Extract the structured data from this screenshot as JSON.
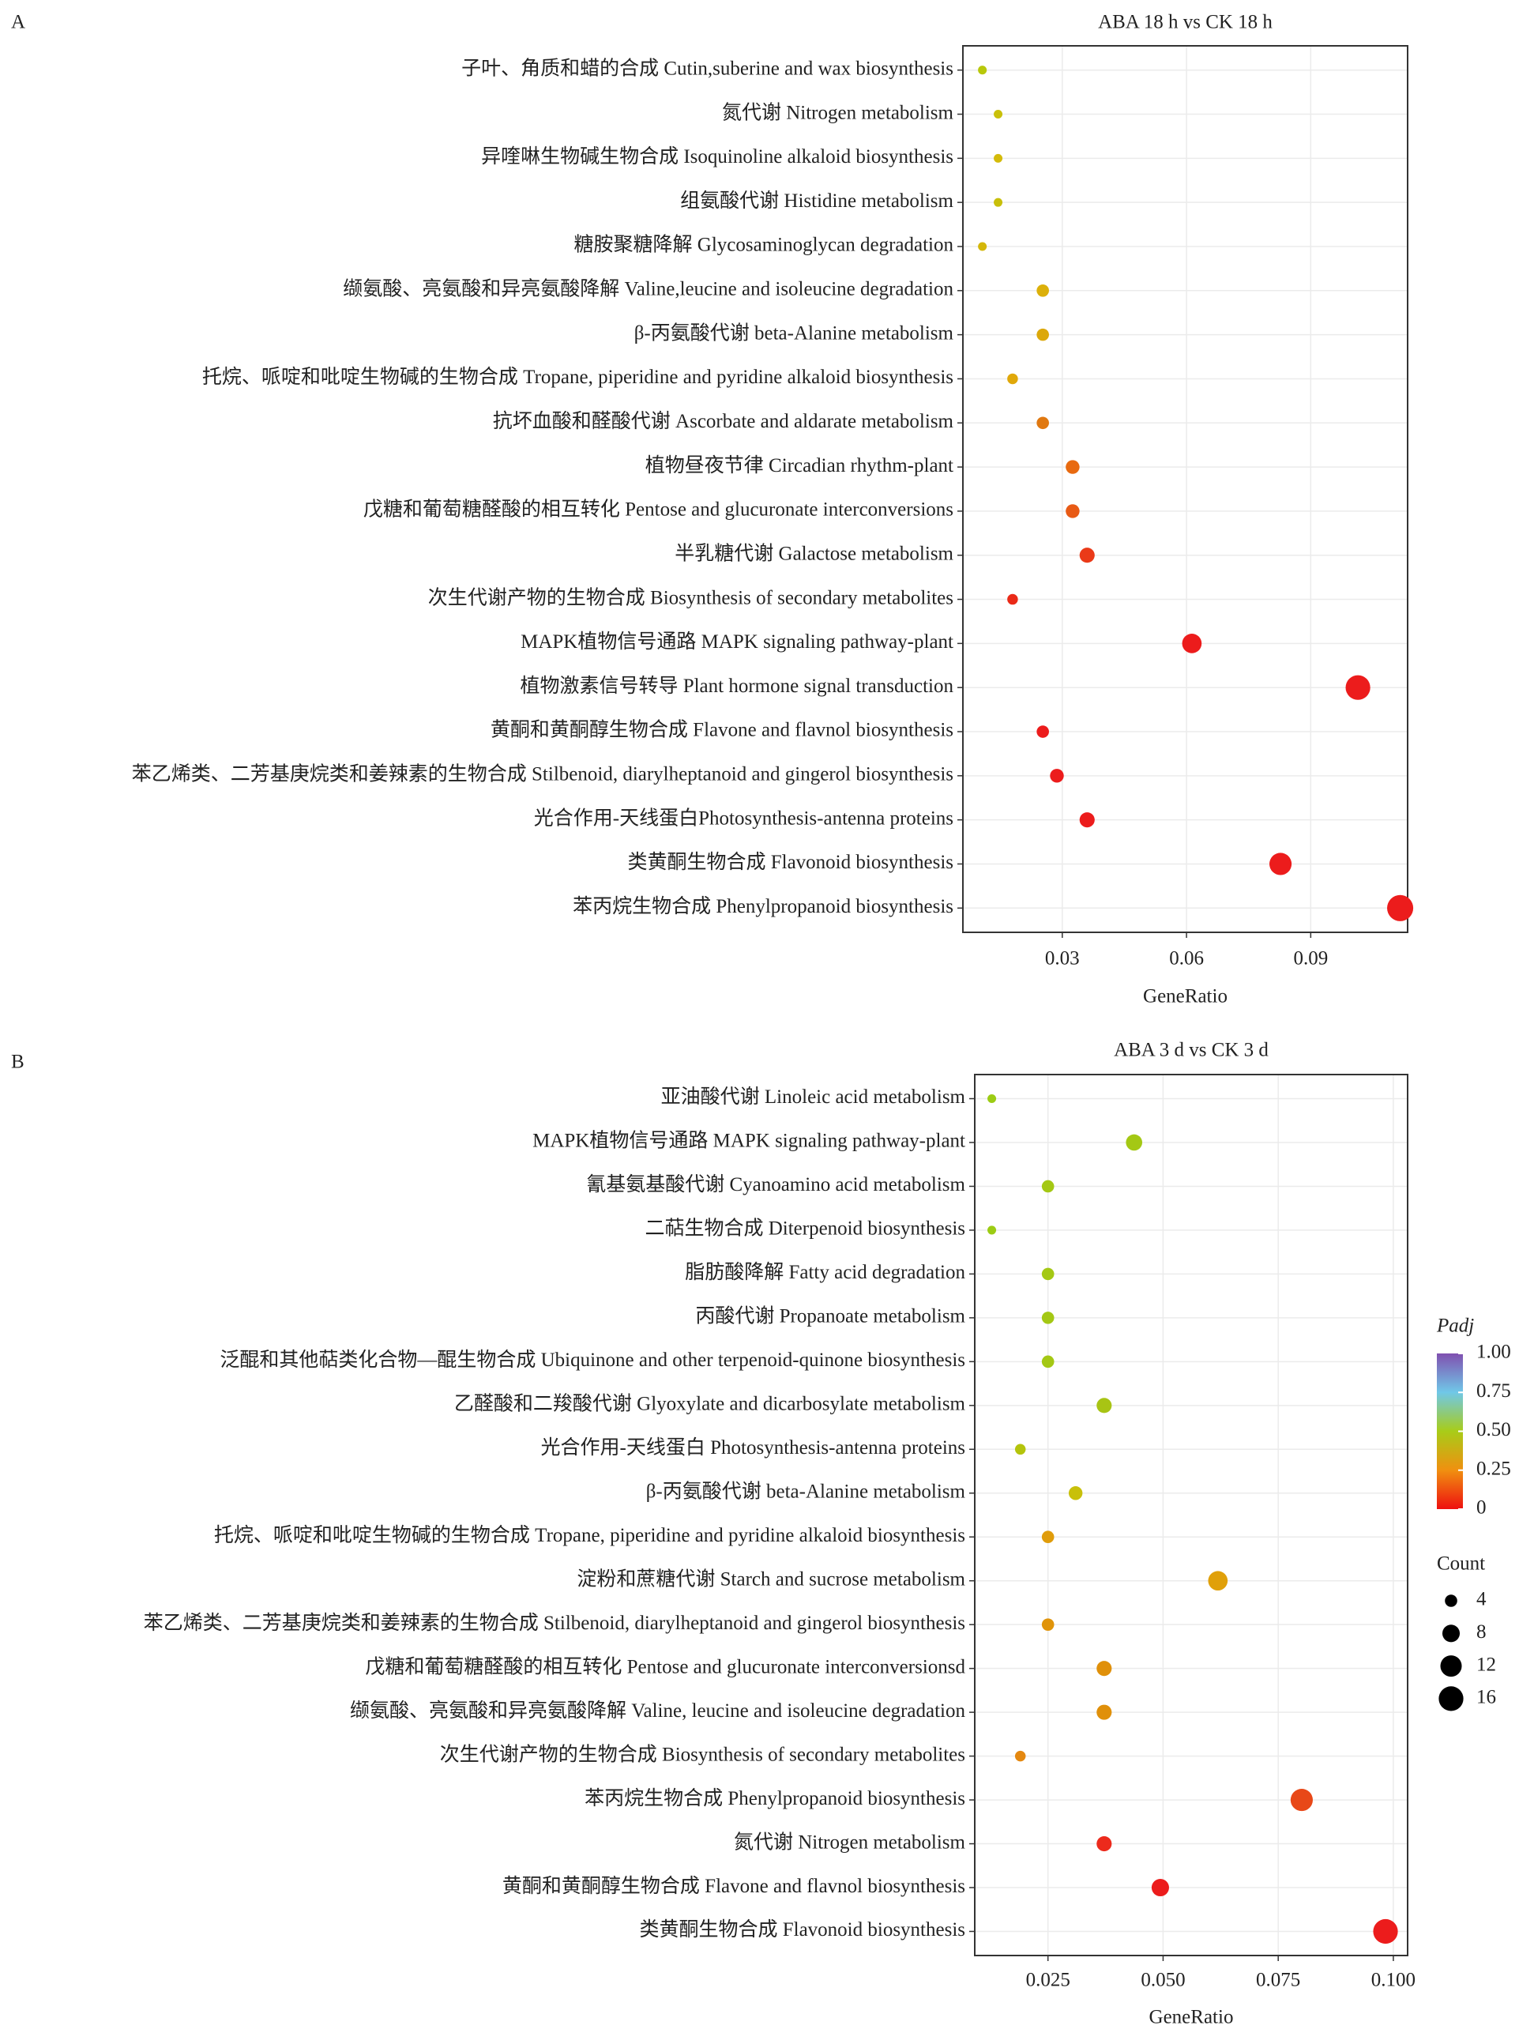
{
  "chart_data": [
    {
      "type": "dot",
      "panel": "A",
      "title": "ABA 18 h  vs  CK 18 h",
      "xlabel": "GeneRatio",
      "categories": [
        "子叶、角质和蜡的合成 Cutin,suberine and wax biosynthesis",
        "氮代谢 Nitrogen metabolism",
        "异喹啉生物碱生物合成 Isoquinoline alkaloid biosynthesis",
        "组氨酸代谢 Histidine metabolism",
        "糖胺聚糖降解 Glycosaminoglycan degradation",
        "缬氨酸、亮氨酸和异亮氨酸降解 Valine,leucine and isoleucine degradation",
        "β-丙氨酸代谢 beta-Alanine metabolism",
        "托烷、哌啶和吡啶生物碱的生物合成  Tropane, piperidine and pyridine alkaloid biosynthesis",
        "抗坏血酸和醛酸代谢 Ascorbate and aldarate metabolism",
        "植物昼夜节律 Circadian rhythm-plant",
        "戊糖和葡萄糖醛酸的相互转化 Pentose and glucuronate interconversions",
        "半乳糖代谢 Galactose metabolism",
        "次生代谢产物的生物合成 Biosynthesis of secondary metabolites",
        "MAPK植物信号通路 MAPK signaling pathway-plant",
        "植物激素信号转导 Plant hormone signal transduction",
        "黄酮和黄酮醇生物合成 Flavone and flavnol biosynthesis",
        "苯乙烯类、二芳基庚烷类和姜辣素的生物合成 Stilbenoid, diarylheptanoid and gingerol biosynthesis",
        "光合作用-天线蛋白Photosynthesis-antenna proteins",
        "类黄酮生物合成 Flavonoid biosynthesis",
        "苯丙烷生物合成 Phenylpropanoid biosynthesis"
      ],
      "values": [
        0.0107,
        0.0145,
        0.0145,
        0.0145,
        0.0107,
        0.0253,
        0.0253,
        0.018,
        0.0253,
        0.0325,
        0.0325,
        0.036,
        0.018,
        0.0613,
        0.1014,
        0.0253,
        0.0287,
        0.036,
        0.0827,
        0.1116
      ],
      "counts": [
        2,
        2,
        2,
        2,
        2,
        4,
        4,
        3,
        4,
        5,
        5,
        6,
        3,
        10,
        16,
        4,
        5,
        6,
        13,
        18
      ],
      "colors": [
        "#b8c80a",
        "#c9c00a",
        "#d4bb0a",
        "#c8bf0a",
        "#d4b70a",
        "#dcb00a",
        "#dca80a",
        "#e0a80a",
        "#e07810",
        "#e86a10",
        "#e85a15",
        "#ea3a18",
        "#ea2a18",
        "#ec1c1c",
        "#ec1c1c",
        "#ec1c1c",
        "#ec1c1c",
        "#ec1c1c",
        "#ec1c1c",
        "#ec1c1c"
      ],
      "xlim": [
        0.006,
        0.1134
      ],
      "xticks": [
        0.03,
        0.06,
        0.09
      ],
      "grid": true
    },
    {
      "type": "dot",
      "panel": "B",
      "title": "ABA 3 d  vs  CK 3 d",
      "xlabel": "GeneRatio",
      "categories": [
        "亚油酸代谢 Linoleic acid metabolism",
        "MAPK植物信号通路 MAPK signaling pathway-plant",
        "氰基氨基酸代谢 Cyanoamino acid metabolism",
        "二萜生物合成 Diterpenoid biosynthesis",
        "脂肪酸降解 Fatty acid degradation",
        "丙酸代谢 Propanoate metabolism",
        "泛醌和其他萜类化合物—醌生物合成 Ubiquinone and other terpenoid-quinone biosynthesis",
        "乙醛酸和二羧酸代谢 Glyoxylate and dicarbosylate metabolism",
        "光合作用-天线蛋白 Photosynthesis-antenna proteins",
        "β-丙氨酸代谢 beta-Alanine metabolism",
        "托烷、哌啶和吡啶生物碱的生物合成 Tropane, piperidine and pyridine alkaloid biosynthesis",
        "淀粉和蔗糖代谢 Starch and sucrose metabolism",
        "苯乙烯类、二芳基庚烷类和姜辣素的生物合成 Stilbenoid, diarylheptanoid and gingerol biosynthesis",
        "戊糖和葡萄糖醛酸的相互转化 Pentose and glucuronate interconversionsd",
        "缬氨酸、亮氨酸和异亮氨酸降解 Valine, leucine and isoleucine degradation",
        "次生代谢产物的生物合成 Biosynthesis of secondary metabolites",
        "苯丙烷生物合成 Phenylpropanoid biosynthesis",
        "氮代谢 Nitrogen metabolism",
        "黄酮和黄酮醇生物合成 Flavone and flavnol biosynthesis",
        "类黄酮生物合成 Flavonoid biosynthesis"
      ],
      "values": [
        0.0128,
        0.0437,
        0.025,
        0.0128,
        0.025,
        0.025,
        0.025,
        0.0372,
        0.019,
        0.031,
        0.025,
        0.0619,
        0.025,
        0.0372,
        0.0372,
        0.019,
        0.0801,
        0.0372,
        0.0494,
        0.0983
      ],
      "counts": [
        2,
        7,
        4,
        2,
        4,
        4,
        4,
        6,
        3,
        5,
        4,
        10,
        4,
        6,
        6,
        3,
        13,
        6,
        8,
        16
      ],
      "colors": [
        "#9ccc14",
        "#a4c814",
        "#a4c814",
        "#9ccc14",
        "#a4c814",
        "#a4c814",
        "#a4c814",
        "#a8c414",
        "#b4c40c",
        "#c8c00a",
        "#e09c0a",
        "#e0a00a",
        "#e0940a",
        "#e0900a",
        "#e0900a",
        "#e48810",
        "#e84818",
        "#ec2a1c",
        "#ec1c1c",
        "#ec1c1c"
      ],
      "xlim": [
        0.0091,
        0.1031
      ],
      "xticks": [
        0.025,
        {
          "value": 0.05,
          "label": "0.050"
        },
        0.075,
        {
          "value": 0.1,
          "label": "0.100"
        }
      ],
      "grid": true,
      "colorbar": {
        "title": "Padj",
        "lim": [
          0,
          1
        ],
        "colors": [
          "#ee1010",
          "#f09010",
          "#a8cc18",
          "#70c8e8",
          "#8050b0"
        ],
        "ticks": [
          {
            "value": 1,
            "label": "1.00"
          },
          0.75,
          {
            "value": 0.5,
            "label": "0.50"
          },
          0.25,
          0
        ]
      },
      "size_legend": {
        "title": "Count",
        "values": [
          4,
          8,
          12,
          16
        ]
      }
    }
  ]
}
